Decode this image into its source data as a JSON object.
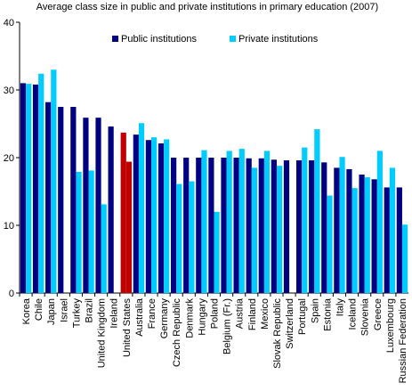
{
  "chart_data": {
    "type": "bar",
    "title": "Average class size in public and private institutions in primary education (2007)",
    "xlabel": "",
    "ylabel": "",
    "ylim": [
      0,
      40
    ],
    "yticks": [
      0,
      10,
      20,
      30,
      40
    ],
    "grid": false,
    "legend_position": "top-right",
    "categories": [
      "Korea",
      "Chile",
      "Japan",
      "Israel",
      "Turkey",
      "Brazil",
      "United Kingdom",
      "Ireland",
      "United States",
      "Australia",
      "France",
      "Germany",
      "Czech Republic",
      "Denmark",
      "Hungary",
      "Poland",
      "Belgium (Fr.)",
      "Austria",
      "Finland",
      "Mexico",
      "Slovak Republic",
      "Switzerland",
      "Portugal",
      "Spain",
      "Estonia",
      "Italy",
      "Iceland",
      "Slovenia",
      "Greece",
      "Luxembourg",
      "Russian Federation"
    ],
    "highlight_category": "United States",
    "series": [
      {
        "name": "Public institutions",
        "color": "#000080",
        "highlight_color": "#C00000",
        "values": [
          31.0,
          30.8,
          28.2,
          27.5,
          27.5,
          25.9,
          25.9,
          24.6,
          23.7,
          23.4,
          22.6,
          22.1,
          20.0,
          20.0,
          20.0,
          20.0,
          20.0,
          20.0,
          19.9,
          19.9,
          19.7,
          19.6,
          19.6,
          19.6,
          19.3,
          18.5,
          18.3,
          17.5,
          16.8,
          15.6,
          15.6
        ]
      },
      {
        "name": "Private institutions",
        "color": "#00CCFF",
        "highlight_color": "#C00000",
        "values": [
          30.9,
          32.4,
          33.0,
          null,
          17.9,
          18.1,
          13.1,
          null,
          19.4,
          25.1,
          23.0,
          22.7,
          16.1,
          16.5,
          21.1,
          12.0,
          21.0,
          21.3,
          18.5,
          21.0,
          18.8,
          null,
          21.5,
          24.2,
          14.4,
          20.1,
          15.5,
          17.1,
          21.0,
          18.5,
          10.1
        ]
      }
    ]
  }
}
